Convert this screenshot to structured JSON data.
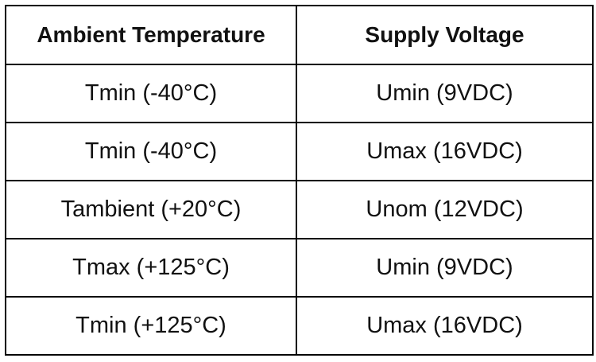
{
  "table": {
    "headers": [
      "Ambient Temperature",
      "Supply Voltage"
    ],
    "rows": [
      [
        "Tmin (-40°C)",
        "Umin (9VDC)"
      ],
      [
        "Tmin (-40°C)",
        "Umax (16VDC)"
      ],
      [
        "Tambient (+20°C)",
        "Unom (12VDC)"
      ],
      [
        "Tmax (+125°C)",
        "Umin (9VDC)"
      ],
      [
        "Tmin (+125°C)",
        "Umax (16VDC)"
      ]
    ]
  }
}
